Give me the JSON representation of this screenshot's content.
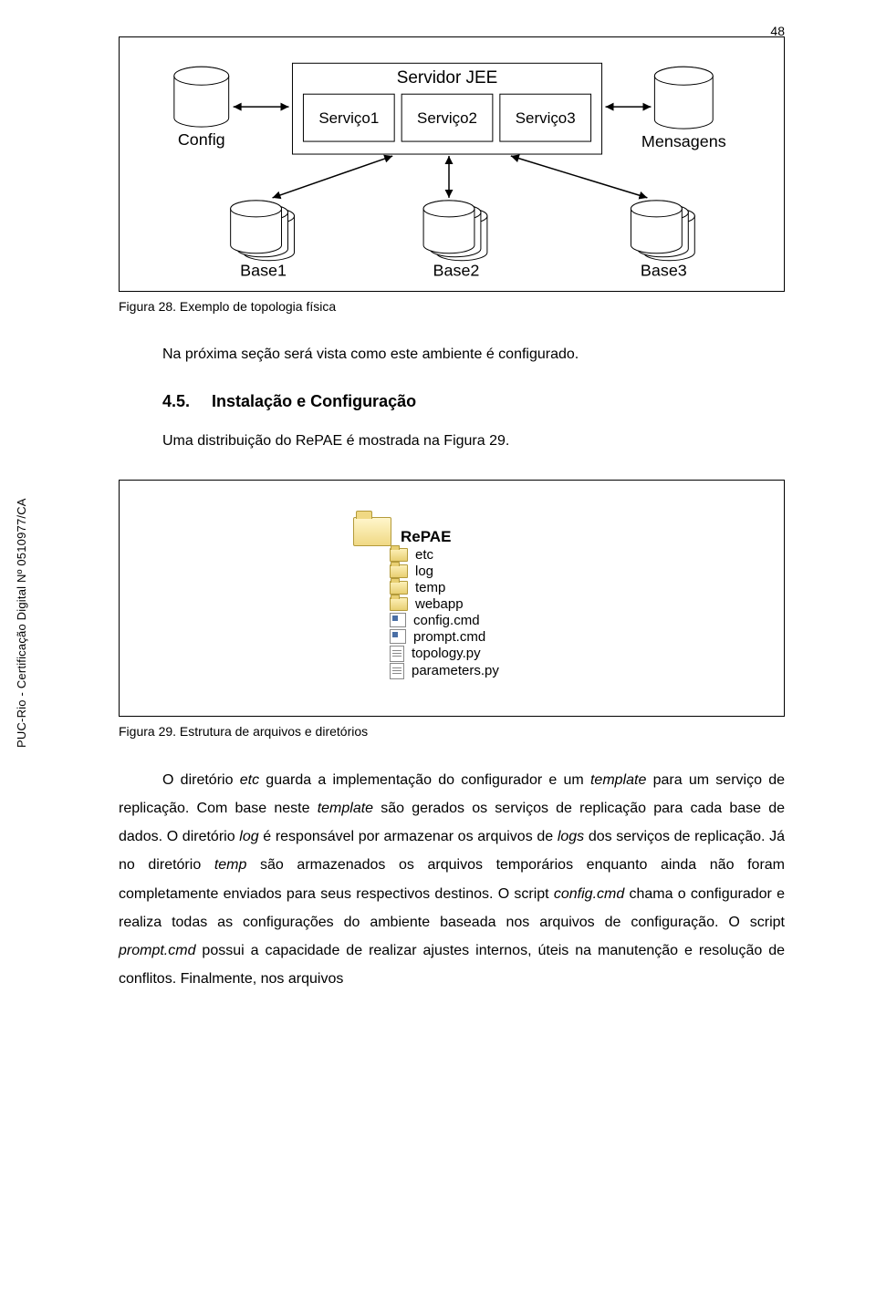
{
  "page_number": "48",
  "sidebar": "PUC-Rio - Certificação Digital Nº 0510977/CA",
  "fig1": {
    "caption": "Figura 28. Exemplo de topologia física",
    "config": "Config",
    "server_title": "Servidor JEE",
    "s1": "Serviço1",
    "s2": "Serviço2",
    "s3": "Serviço3",
    "mensagens": "Mensagens",
    "b1": "Base1",
    "b2": "Base2",
    "b3": "Base3"
  },
  "intro_after_fig1": "Na próxima seção será vista como este ambiente é configurado.",
  "section": {
    "num": "4.5.",
    "title": "Instalação e Configuração"
  },
  "section_intro": "Uma distribuição do RePAE é mostrada na Figura 29.",
  "fig2": {
    "caption": "Figura 29. Estrutura de arquivos e diretórios",
    "root": "RePAE",
    "items": [
      {
        "type": "dir",
        "name": "etc"
      },
      {
        "type": "dir",
        "name": "log"
      },
      {
        "type": "dir",
        "name": "temp"
      },
      {
        "type": "dir",
        "name": "webapp"
      },
      {
        "type": "cmd",
        "name": "config.cmd"
      },
      {
        "type": "cmd",
        "name": "prompt.cmd"
      },
      {
        "type": "py",
        "name": "topology.py"
      },
      {
        "type": "py",
        "name": "parameters.py"
      }
    ]
  },
  "body": {
    "pieces": [
      "O diretório ",
      "etc",
      " guarda a implementação do configurador e um ",
      "template",
      " para um serviço de replicação. Com base neste ",
      "template",
      " são gerados os serviços de replicação para cada base de dados. O diretório ",
      "log",
      " é responsável por armazenar os arquivos de ",
      "logs",
      " dos serviços de replicação. Já no diretório ",
      "temp",
      " são armazenados os arquivos temporários enquanto ainda não foram completamente enviados para seus respectivos destinos. O script ",
      "config.cmd",
      " chama o configurador e realiza todas as configurações do ambiente baseada nos arquivos de configuração. O script ",
      "prompt.cmd",
      " possui a capacidade de realizar ajustes internos, úteis na manutenção e resolução de conflitos. Finalmente, nos arquivos"
    ],
    "italics": [
      1,
      3,
      5,
      7,
      9,
      11,
      13,
      15
    ]
  }
}
